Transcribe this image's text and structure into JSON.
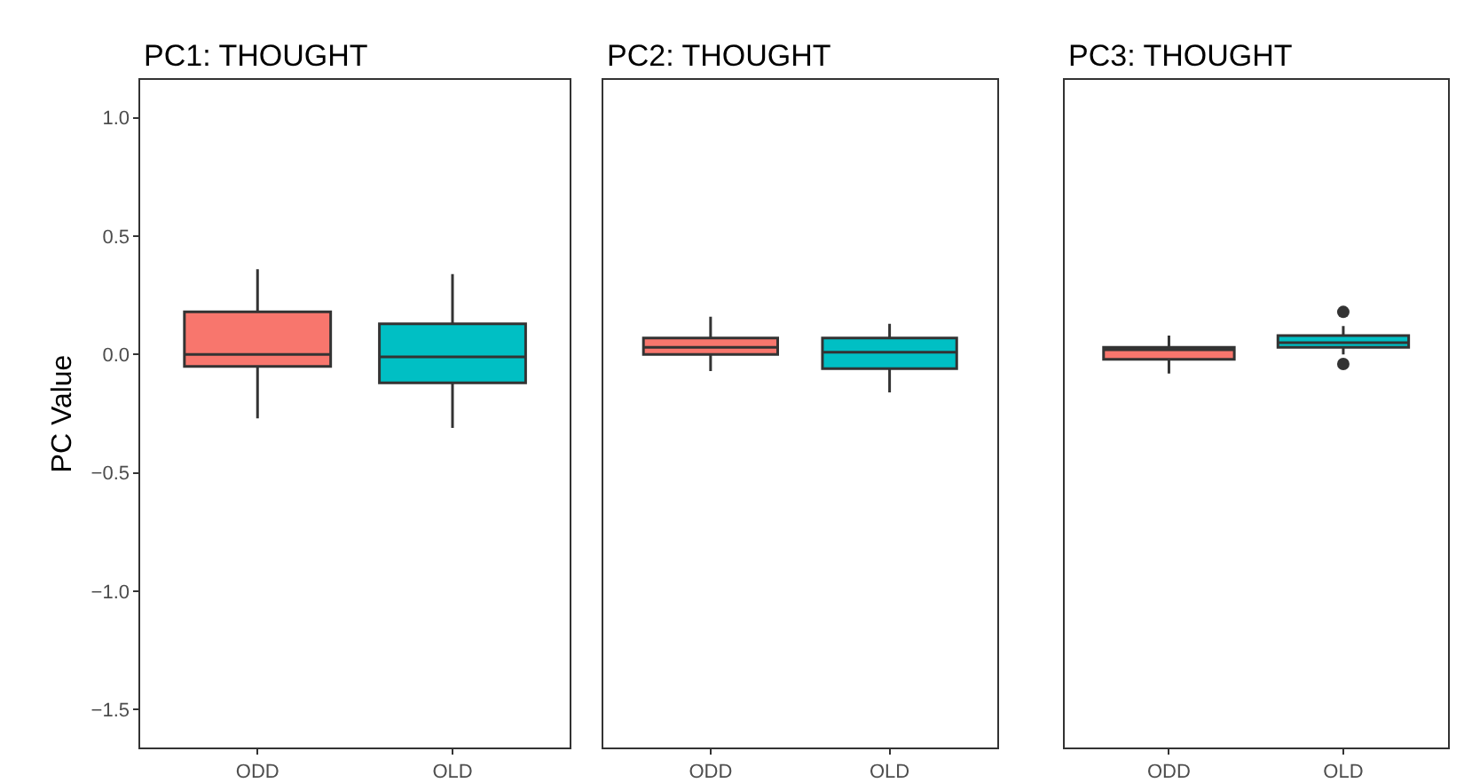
{
  "chart_data": [
    {
      "type": "box",
      "title": "PC1: THOUGHT",
      "ylabel": "PC Value",
      "categories": [
        "ODD",
        "OLD"
      ],
      "colors": [
        "#f8766d",
        "#00bfc4"
      ],
      "boxes": [
        {
          "low": -0.27,
          "q1": -0.05,
          "median": 0.0,
          "q3": 0.18,
          "high": 0.36
        },
        {
          "low": -0.31,
          "q1": -0.12,
          "median": -0.01,
          "q3": 0.13,
          "high": 0.34
        }
      ],
      "ylim": [
        -1.66,
        1.16
      ],
      "yticks": [
        {
          "value": -1.5,
          "label": "−1.5"
        },
        {
          "value": -1.0,
          "label": "−1.0"
        },
        {
          "value": -0.5,
          "label": "−0.5"
        },
        {
          "value": 0.0,
          "label": "0.0"
        },
        {
          "value": 0.5,
          "label": "0.5"
        },
        {
          "value": 1.0,
          "label": "1.0"
        }
      ]
    },
    {
      "type": "box",
      "title": "PC2: THOUGHT",
      "categories": [
        "ODD",
        "OLD"
      ],
      "colors": [
        "#f8766d",
        "#00bfc4"
      ],
      "tick_labels": "x",
      "boxes": [
        {
          "low": -0.07,
          "q1": 0.0,
          "median": 0.03,
          "q3": 0.07,
          "high": 0.16
        },
        {
          "low": -0.16,
          "q1": -0.06,
          "median": 0.01,
          "q3": 0.07,
          "high": 0.13
        }
      ],
      "ylim": [
        -1.66,
        1.16
      ]
    },
    {
      "type": "box",
      "title": "PC3: THOUGHT",
      "categories": [
        "ODD",
        "OLD"
      ],
      "colors": [
        "#f8766d",
        "#00bfc4"
      ],
      "tick_labels": "x",
      "boxes": [
        {
          "low": -0.08,
          "q1": -0.02,
          "median": 0.02,
          "q3": 0.03,
          "high": 0.08
        },
        {
          "low": 0.0,
          "q1": 0.03,
          "median": 0.05,
          "q3": 0.08,
          "high": 0.12,
          "outliers": [
            0.18,
            -0.04
          ]
        }
      ],
      "ylim": [
        -1.66,
        1.16
      ]
    }
  ]
}
